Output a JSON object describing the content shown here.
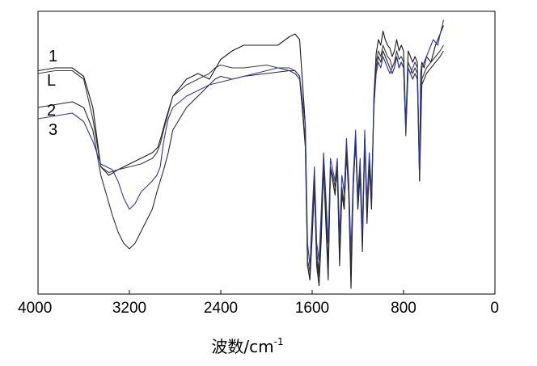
{
  "chart_data": {
    "type": "line",
    "title": "",
    "xlabel": "波数/cm",
    "xlabel_superscript": "-1",
    "ylabel": "",
    "xlim": [
      4000,
      0
    ],
    "reversed_x": true,
    "x_ticks": [
      {
        "value": 4000,
        "label": "4000"
      },
      {
        "value": 3200,
        "label": "3200"
      },
      {
        "value": 2400,
        "label": "2400"
      },
      {
        "value": 1600,
        "label": "1600"
      },
      {
        "value": 800,
        "label": "800"
      },
      {
        "value": 0,
        "label": "0"
      }
    ],
    "y_scale": "transmittance (relative, unlabeled)",
    "ylim": [
      0,
      100
    ],
    "grid": false,
    "series": [
      {
        "name": "1",
        "color": "#1a1a1a",
        "x": [
          4000,
          3850,
          3700,
          3600,
          3520,
          3450,
          3380,
          3300,
          3200,
          3100,
          3000,
          2950,
          2920,
          2880,
          2820,
          2700,
          2600,
          2500,
          2400,
          2300,
          2200,
          2000,
          1900,
          1800,
          1750,
          1710,
          1660,
          1640,
          1620,
          1600,
          1580,
          1560,
          1540,
          1520,
          1500,
          1480,
          1460,
          1440,
          1420,
          1400,
          1380,
          1360,
          1340,
          1320,
          1300,
          1280,
          1260,
          1240,
          1220,
          1200,
          1180,
          1160,
          1140,
          1120,
          1100,
          1080,
          1060,
          1040,
          1020,
          1000,
          980,
          960,
          940,
          920,
          900,
          880,
          860,
          840,
          820,
          800,
          780,
          760,
          740,
          720,
          700,
          680,
          660,
          650,
          640,
          620,
          600,
          560,
          520,
          480,
          450
        ],
        "y": [
          79,
          80,
          80,
          77,
          66,
          45,
          42,
          44,
          46,
          48,
          50,
          52,
          56,
          62,
          70,
          76,
          78,
          76,
          83,
          86,
          88,
          88,
          88,
          91,
          92,
          90,
          60,
          10,
          5,
          20,
          38,
          10,
          3,
          20,
          45,
          25,
          5,
          45,
          40,
          35,
          45,
          10,
          35,
          30,
          50,
          35,
          2,
          38,
          55,
          30,
          42,
          15,
          55,
          25,
          45,
          30,
          70,
          85,
          90,
          88,
          93,
          90,
          88,
          87,
          84,
          86,
          90,
          86,
          88,
          86,
          60,
          86,
          84,
          82,
          84,
          82,
          40,
          78,
          82,
          80,
          84,
          82,
          88,
          92,
          95
        ]
      },
      {
        "name": "L",
        "color": "#3a3a3a",
        "x": [
          4000,
          3850,
          3700,
          3600,
          3520,
          3450,
          3380,
          3300,
          3200,
          3100,
          3050,
          3000,
          2960,
          2930,
          2900,
          2860,
          2820,
          2700,
          2600,
          2500,
          2450,
          2400,
          2300,
          2200,
          2000,
          1800,
          1750,
          1710,
          1660,
          1640,
          1620,
          1600,
          1580,
          1560,
          1540,
          1520,
          1500,
          1480,
          1460,
          1440,
          1420,
          1400,
          1380,
          1360,
          1340,
          1320,
          1300,
          1280,
          1260,
          1240,
          1220,
          1200,
          1180,
          1160,
          1140,
          1120,
          1100,
          1080,
          1060,
          1040,
          1020,
          1000,
          980,
          960,
          940,
          920,
          900,
          880,
          860,
          840,
          820,
          800,
          780,
          760,
          740,
          720,
          700,
          680,
          660,
          640,
          620,
          600,
          560,
          520,
          480,
          450
        ],
        "y": [
          78,
          79,
          79,
          76,
          62,
          45,
          43,
          44,
          45,
          46,
          47,
          48,
          50,
          53,
          58,
          64,
          70,
          74,
          76,
          78,
          80,
          81,
          80,
          80,
          81,
          79,
          78,
          76,
          55,
          12,
          8,
          25,
          42,
          15,
          8,
          25,
          48,
          30,
          10,
          45,
          42,
          38,
          45,
          15,
          38,
          32,
          52,
          38,
          10,
          40,
          55,
          32,
          45,
          20,
          55,
          30,
          48,
          35,
          68,
          82,
          86,
          84,
          88,
          86,
          84,
          83,
          80,
          82,
          86,
          83,
          84,
          82,
          58,
          82,
          80,
          78,
          80,
          78,
          42,
          76,
          78,
          80,
          82,
          84,
          86,
          88
        ]
      },
      {
        "name": "2",
        "color": "#2a2a2a",
        "x": [
          4000,
          3850,
          3700,
          3600,
          3520,
          3450,
          3400,
          3350,
          3300,
          3250,
          3200,
          3150,
          3100,
          3050,
          3000,
          2960,
          2930,
          2900,
          2860,
          2820,
          2700,
          2600,
          2500,
          2450,
          2400,
          2300,
          2200,
          2000,
          1800,
          1750,
          1710,
          1660,
          1640,
          1620,
          1600,
          1580,
          1560,
          1540,
          1520,
          1500,
          1480,
          1460,
          1440,
          1420,
          1400,
          1380,
          1360,
          1340,
          1320,
          1300,
          1280,
          1260,
          1240,
          1220,
          1200,
          1180,
          1160,
          1140,
          1120,
          1100,
          1080,
          1060,
          1040,
          1020,
          1000,
          980,
          960,
          940,
          920,
          900,
          880,
          860,
          840,
          820,
          800,
          780,
          760,
          740,
          720,
          700,
          680,
          660,
          640,
          620,
          600,
          560,
          520,
          480,
          450
        ],
        "y": [
          66,
          67,
          68,
          66,
          58,
          42,
          35,
          28,
          22,
          18,
          16,
          18,
          22,
          26,
          30,
          36,
          40,
          44,
          50,
          58,
          66,
          70,
          74,
          76,
          77,
          76,
          77,
          78,
          79,
          79,
          77,
          52,
          10,
          6,
          22,
          40,
          12,
          6,
          22,
          46,
          28,
          8,
          44,
          40,
          36,
          44,
          12,
          36,
          30,
          50,
          36,
          8,
          38,
          54,
          30,
          44,
          18,
          54,
          28,
          46,
          32,
          66,
          80,
          84,
          82,
          86,
          84,
          82,
          80,
          78,
          80,
          84,
          80,
          82,
          80,
          56,
          80,
          78,
          76,
          78,
          76,
          40,
          74,
          76,
          78,
          80,
          82,
          84,
          86
        ]
      },
      {
        "name": "3",
        "color": "#2e3a9a",
        "x": [
          4000,
          3850,
          3700,
          3600,
          3520,
          3450,
          3400,
          3350,
          3300,
          3250,
          3200,
          3150,
          3100,
          3050,
          3000,
          2960,
          2930,
          2900,
          2860,
          2820,
          2760,
          2700,
          2600,
          2500,
          2400,
          2300,
          2200,
          2100,
          2000,
          1900,
          1800,
          1750,
          1710,
          1660,
          1640,
          1620,
          1600,
          1580,
          1560,
          1540,
          1520,
          1500,
          1480,
          1460,
          1440,
          1420,
          1400,
          1380,
          1360,
          1340,
          1320,
          1300,
          1280,
          1260,
          1240,
          1220,
          1200,
          1180,
          1160,
          1140,
          1120,
          1100,
          1080,
          1060,
          1040,
          1020,
          1000,
          980,
          960,
          940,
          920,
          900,
          880,
          860,
          840,
          820,
          800,
          780,
          760,
          740,
          720,
          700,
          680,
          660,
          640,
          620,
          600,
          580,
          560,
          540,
          520,
          500,
          480,
          460,
          450
        ],
        "y": [
          62,
          63,
          64,
          61,
          54,
          46,
          45,
          44,
          40,
          34,
          30,
          32,
          36,
          38,
          40,
          42,
          45,
          54,
          62,
          66,
          68,
          70,
          72,
          74,
          75,
          76,
          77,
          78,
          79,
          80,
          80,
          79,
          77,
          60,
          18,
          10,
          28,
          45,
          18,
          12,
          30,
          50,
          35,
          18,
          48,
          44,
          40,
          48,
          20,
          42,
          36,
          55,
          40,
          15,
          42,
          58,
          35,
          48,
          22,
          58,
          32,
          50,
          36,
          66,
          78,
          82,
          80,
          84,
          82,
          80,
          78,
          80,
          82,
          84,
          80,
          82,
          80,
          58,
          80,
          78,
          80,
          82,
          80,
          45,
          80,
          82,
          84,
          86,
          88,
          90,
          89,
          88,
          92,
          95,
          97
        ]
      }
    ],
    "series_labels": [
      "1",
      "L",
      "2",
      "3"
    ]
  }
}
